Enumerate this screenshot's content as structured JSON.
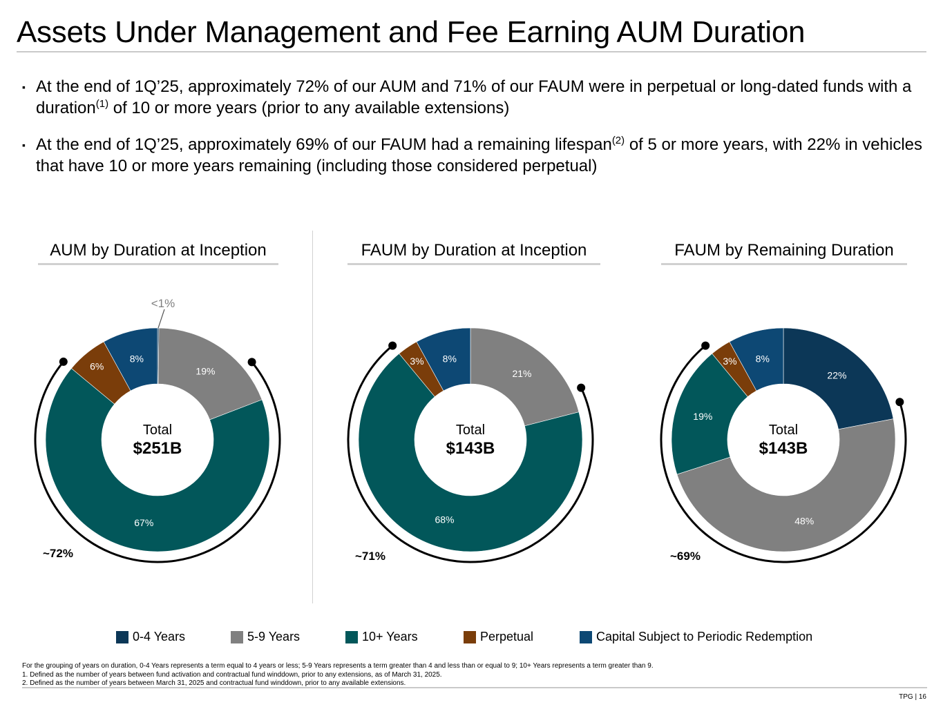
{
  "title": "Assets Under Management and Fee Earning AUM Duration",
  "bullets": [
    {
      "marker": "▪",
      "before": "At the end of 1Q’25, approximately 72% of our AUM and 71% of our FAUM were in perpetual or long-dated funds with a duration",
      "sup": "(1)",
      "after": " of 10 or more years (prior to any available extensions)"
    },
    {
      "marker": "▪",
      "before": "At the end of 1Q’25, approximately 69% of our FAUM had a remaining lifespan",
      "sup": "(2)",
      "after": " of 5 or more years, with 22% in vehicles that have 10 or more years remaining (including those considered perpetual)"
    }
  ],
  "colors": {
    "0-4 Years": "#0c3757",
    "5-9 Years": "#808080",
    "10+ Years": "#02575a",
    "Perpetual": "#7a3d0a",
    "Capital Subject to Periodic Redemption": "#0d4874"
  },
  "chart_data": [
    {
      "type": "pie",
      "variant": "donut",
      "title": "AUM by Duration at Inception",
      "center_label": "Total",
      "center_value": "$251B",
      "slices": [
        {
          "category": "0-4 Years",
          "value": 0.2,
          "label": "<1%"
        },
        {
          "category": "5-9 Years",
          "value": 19,
          "label": "19%"
        },
        {
          "category": "10+ Years",
          "value": 67,
          "label": "67%"
        },
        {
          "category": "Perpetual",
          "value": 6,
          "label": "6%"
        },
        {
          "category": "Capital Subject to Periodic Redemption",
          "value": 8,
          "label": "8%"
        }
      ],
      "bracket_label": "~72%",
      "bracket_share": 72
    },
    {
      "type": "pie",
      "variant": "donut",
      "title": "FAUM by Duration at Inception",
      "center_label": "Total",
      "center_value": "$143B",
      "slices": [
        {
          "category": "5-9 Years",
          "value": 21,
          "label": "21%"
        },
        {
          "category": "10+ Years",
          "value": 68,
          "label": "68%"
        },
        {
          "category": "Perpetual",
          "value": 3,
          "label": "3%"
        },
        {
          "category": "Capital Subject to Periodic Redemption",
          "value": 8,
          "label": "8%"
        }
      ],
      "bracket_label": "~71%",
      "bracket_share": 71
    },
    {
      "type": "pie",
      "variant": "donut",
      "title": "FAUM by Remaining Duration",
      "center_label": "Total",
      "center_value": "$143B",
      "slices": [
        {
          "category": "0-4 Years",
          "value": 22,
          "label": "22%"
        },
        {
          "category": "5-9 Years",
          "value": 48,
          "label": "48%"
        },
        {
          "category": "10+ Years",
          "value": 19,
          "label": "19%"
        },
        {
          "category": "Perpetual",
          "value": 3,
          "label": "3%"
        },
        {
          "category": "Capital Subject to Periodic Redemption",
          "value": 8,
          "label": "8%"
        }
      ],
      "bracket_label": "~69%",
      "bracket_share": 69
    }
  ],
  "legend": [
    "0-4 Years",
    "5-9 Years",
    "10+ Years",
    "Perpetual",
    "Capital Subject to Periodic Redemption"
  ],
  "footnotes": [
    "For the grouping of years on duration, 0-4 Years represents a term equal to 4 years or less; 5-9 Years represents a term greater than 4 and less than or equal to 9; 10+ Years represents a term greater than 9.",
    "1. Defined as the number of years between fund activation and contractual fund winddown, prior to any extensions, as of March 31, 2025.",
    "2. Defined as the number of years between March 31, 2025 and contractual fund winddown, prior to any available extensions."
  ],
  "page_number": "TPG | 16"
}
